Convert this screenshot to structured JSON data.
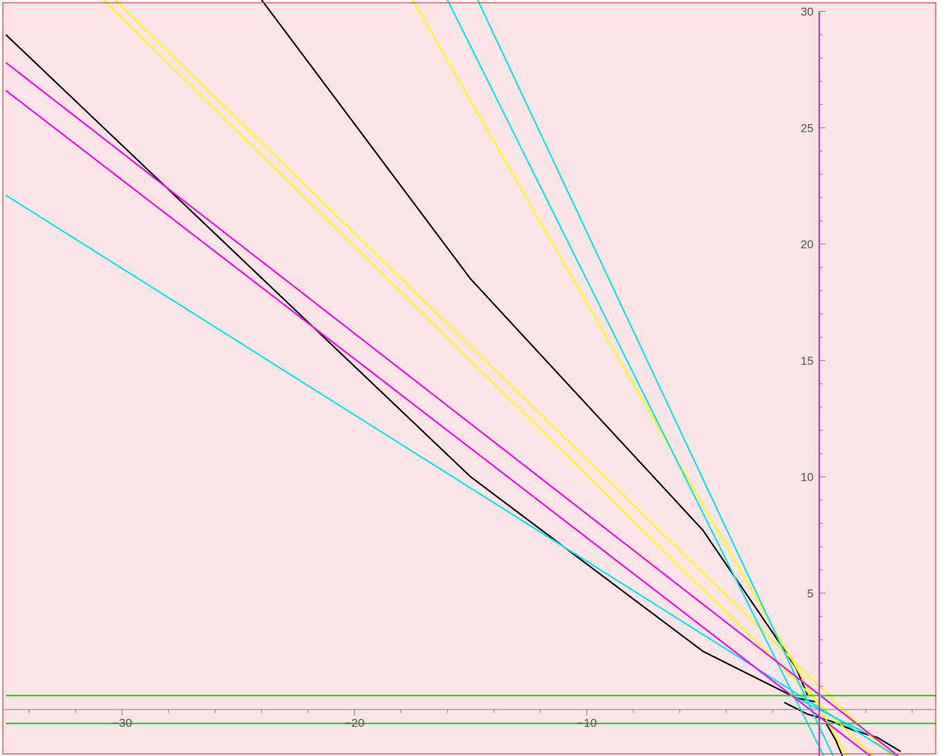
{
  "chart_data": {
    "type": "line",
    "title": "",
    "xlabel": "",
    "ylabel": "",
    "xlim": [
      -35,
      5
    ],
    "ylim": [
      -2,
      30
    ],
    "grid": false,
    "background": "#fde4e6",
    "frame_color": "#e05a5a",
    "axis_color": "#777777",
    "x_tick_labels": [
      {
        "value": -30,
        "label": "−30"
      },
      {
        "value": -20,
        "label": "−20"
      },
      {
        "value": -10,
        "label": "−10"
      }
    ],
    "y_tick_labels": [
      {
        "value": 5,
        "label": "5"
      },
      {
        "value": 10,
        "label": "10"
      },
      {
        "value": 15,
        "label": "15"
      },
      {
        "value": 20,
        "label": "20"
      },
      {
        "value": 25,
        "label": "25"
      },
      {
        "value": 30,
        "label": "30"
      }
    ],
    "series": [
      {
        "color": "#000000",
        "points": [
          [
            -35,
            29.0
          ],
          [
            -25,
            19.5
          ],
          [
            -15,
            10.0
          ],
          [
            -5,
            2.5
          ],
          [
            -1,
            0.5
          ],
          [
            0,
            0.3
          ]
        ]
      },
      {
        "color": "#000000",
        "points": [
          [
            -24,
            30.5
          ],
          [
            -15,
            18.5
          ],
          [
            -5,
            7.7
          ],
          [
            -2,
            3.3
          ],
          [
            -1,
            1.8
          ],
          [
            -0.5,
            0.6
          ]
        ]
      },
      {
        "color": "#000000",
        "points": [
          [
            -1.5,
            0.3
          ],
          [
            -0.5,
            -0.2
          ],
          [
            0.5,
            -0.5
          ],
          [
            1.5,
            -0.9
          ],
          [
            2.5,
            -1.2
          ],
          [
            3.5,
            -1.8
          ]
        ]
      },
      {
        "color": "#000000",
        "points": [
          [
            0.3,
            -0.6
          ],
          [
            0.7,
            -1.3
          ],
          [
            1.0,
            -2.0
          ]
        ]
      },
      {
        "color": "#ffff00",
        "points": [
          [
            -30.8,
            30.5
          ],
          [
            2.3,
            -2.0
          ]
        ]
      },
      {
        "color": "#ffff00",
        "points": [
          [
            -30.3,
            30.5
          ],
          [
            3.1,
            -2.0
          ]
        ]
      },
      {
        "color": "#ffff00",
        "points": [
          [
            -17.5,
            30.5
          ],
          [
            1.2,
            -2.0
          ]
        ]
      },
      {
        "color": "#00e5ee",
        "points": [
          [
            -16.0,
            30.5
          ],
          [
            0.2,
            -2.0
          ]
        ]
      },
      {
        "color": "#00e5ee",
        "points": [
          [
            -14.7,
            30.5
          ],
          [
            0.6,
            -2.0
          ]
        ]
      },
      {
        "color": "#00e5ee",
        "points": [
          [
            -35,
            22.1
          ],
          [
            3.3,
            -2.0
          ]
        ]
      },
      {
        "color": "#00e5ee",
        "points": [
          [
            -1.0,
            0.5
          ],
          [
            0.0,
            0.0
          ],
          [
            1.0,
            -0.5
          ],
          [
            2.0,
            -1.0
          ]
        ]
      },
      {
        "color": "#ff00ff",
        "points": [
          [
            -35,
            27.8
          ],
          [
            3.4,
            -2.0
          ]
        ]
      },
      {
        "color": "#ff00ff",
        "points": [
          [
            -35,
            26.6
          ],
          [
            2.2,
            -2.0
          ]
        ]
      },
      {
        "color": "#ff00ff",
        "points": [
          [
            0,
            30
          ],
          [
            0,
            -2
          ]
        ]
      },
      {
        "color": "#00dd00",
        "points": [
          [
            -35,
            0.6
          ],
          [
            5,
            0.6
          ]
        ]
      },
      {
        "color": "#00dd00",
        "points": [
          [
            -35,
            -0.6
          ],
          [
            5,
            -0.6
          ]
        ]
      }
    ]
  }
}
